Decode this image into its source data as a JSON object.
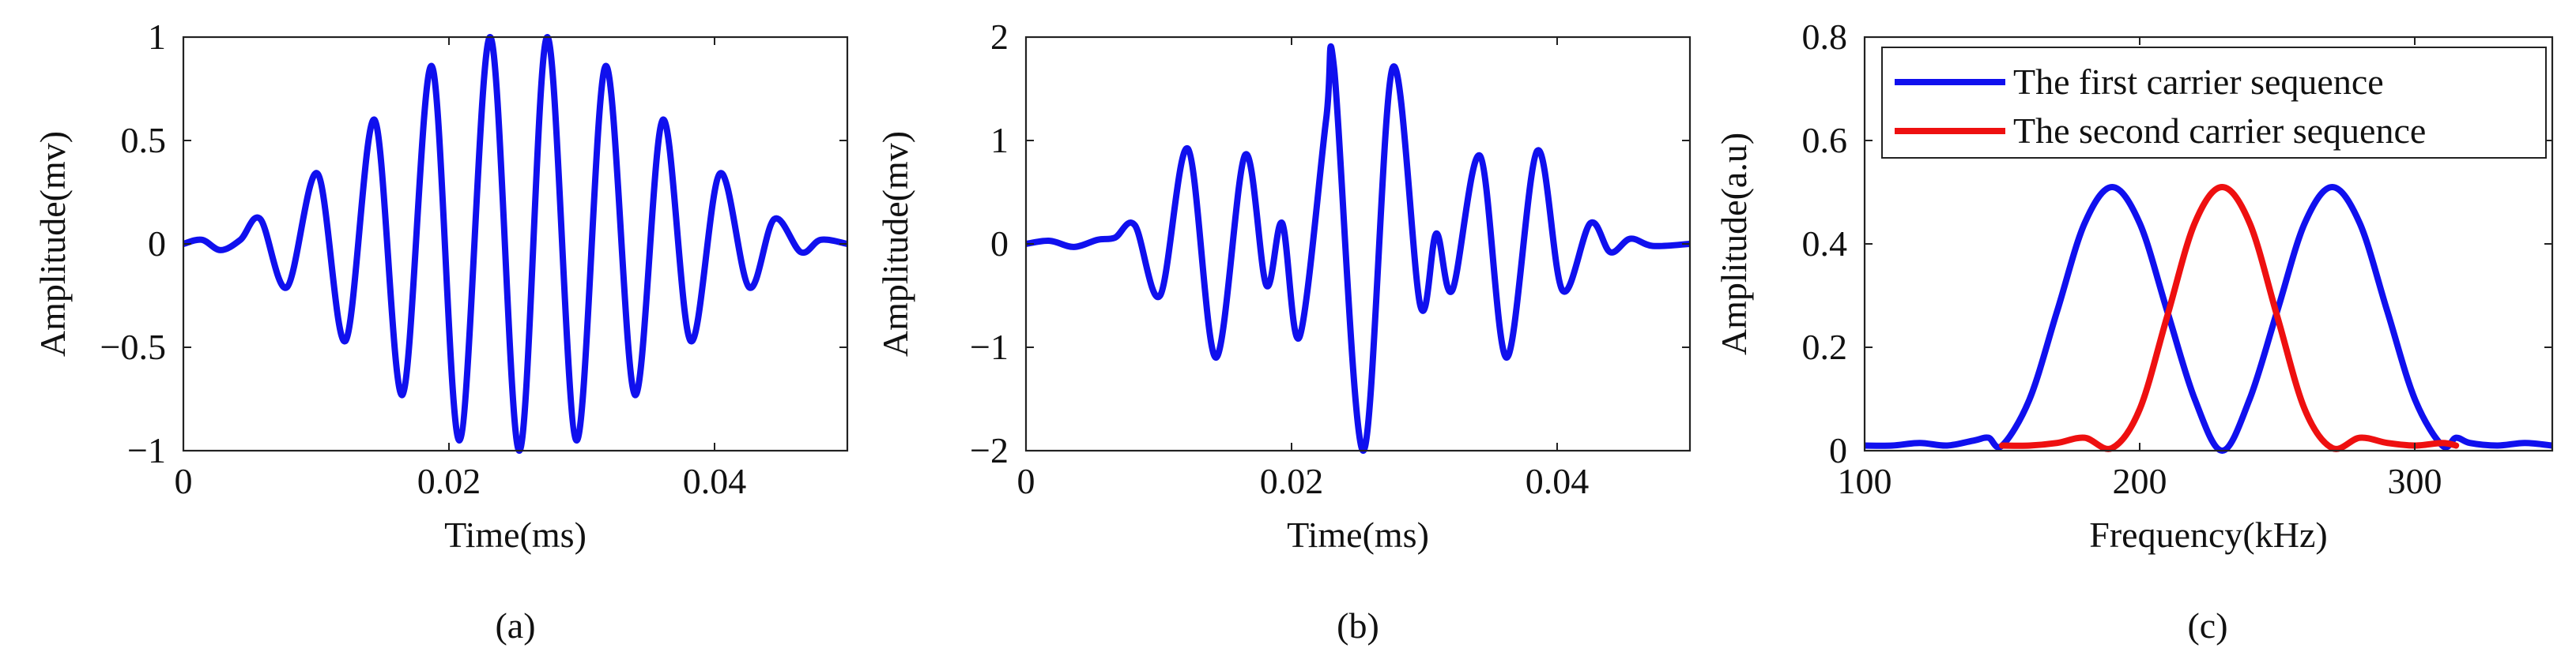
{
  "chart_data": [
    {
      "id": "a",
      "type": "line",
      "caption": "(a)",
      "xlabel": "Time(ms)",
      "ylabel": "Amplitude(mv)",
      "xlim": [
        0,
        0.05
      ],
      "ylim": [
        -1,
        1
      ],
      "xticks": [
        0,
        0.02,
        0.04
      ],
      "xtick_labels": [
        "0",
        "0.02",
        "0.04"
      ],
      "yticks": [
        -1,
        -0.5,
        0,
        0.5,
        1
      ],
      "ytick_labels": [
        "−1",
        "−0.5",
        "0",
        "0.5",
        "1"
      ],
      "series": [
        {
          "color": "#1010ee",
          "x": [
            0.0,
            0.0014,
            0.0028,
            0.0043,
            0.0058,
            0.0078,
            0.0101,
            0.0122,
            0.0144,
            0.0165,
            0.0187,
            0.0208,
            0.0231,
            0.0253,
            0.0274,
            0.0296,
            0.0318,
            0.034,
            0.0361,
            0.0382,
            0.0404,
            0.0426,
            0.0445,
            0.0465,
            0.048,
            0.05
          ],
          "y": [
            0.0,
            0.02,
            -0.03,
            0.02,
            0.12,
            -0.21,
            0.34,
            -0.47,
            0.6,
            -0.73,
            0.86,
            -0.95,
            1.0,
            -1.0,
            1.0,
            -0.95,
            0.86,
            -0.73,
            0.6,
            -0.47,
            0.34,
            -0.21,
            0.12,
            -0.04,
            0.02,
            0.0
          ]
        }
      ]
    },
    {
      "id": "b",
      "type": "line",
      "caption": "(b)",
      "xlabel": "Time(ms)",
      "ylabel": "Amplitude(mv)",
      "xlim": [
        0,
        0.05
      ],
      "ylim": [
        -2,
        2
      ],
      "xticks": [
        0,
        0.02,
        0.04
      ],
      "xtick_labels": [
        "0",
        "0.02",
        "0.04"
      ],
      "yticks": [
        -2,
        -1,
        0,
        1,
        2
      ],
      "ytick_labels": [
        "−2",
        "−1",
        "0",
        "1",
        "2"
      ],
      "series": [
        {
          "color": "#1010ee",
          "x": [
            0.0,
            0.0018,
            0.0036,
            0.0054,
            0.0067,
            0.0082,
            0.0101,
            0.0122,
            0.0143,
            0.0165,
            0.0181,
            0.0193,
            0.0206,
            0.0226,
            0.0232,
            0.0254,
            0.0276,
            0.0297,
            0.0309,
            0.0321,
            0.0342,
            0.0362,
            0.0385,
            0.0404,
            0.0425,
            0.044,
            0.0455,
            0.0472,
            0.05
          ],
          "y": [
            0.0,
            0.03,
            -0.03,
            0.04,
            0.06,
            0.18,
            -0.5,
            0.92,
            -1.1,
            0.86,
            -0.4,
            0.2,
            -0.9,
            1.2,
            1.7,
            -2.0,
            1.7,
            -0.6,
            0.1,
            -0.45,
            0.85,
            -1.1,
            0.9,
            -0.45,
            0.2,
            -0.08,
            0.05,
            -0.02,
            0.0
          ]
        }
      ]
    },
    {
      "id": "c",
      "type": "line",
      "caption": "(c)",
      "xlabel": "Frequency(kHz)",
      "ylabel": "Amplitude(a.u)",
      "xlim": [
        100,
        350
      ],
      "ylim": [
        0,
        0.8
      ],
      "xticks": [
        100,
        200,
        300
      ],
      "xtick_labels": [
        "100",
        "200",
        "300"
      ],
      "yticks": [
        0,
        0.2,
        0.4,
        0.6,
        0.8
      ],
      "ytick_labels": [
        "0",
        "0.2",
        "0.4",
        "0.6",
        "0.8"
      ],
      "legend_position": "top-right",
      "series": [
        {
          "name": "The first carrier sequence",
          "color": "#1010ee",
          "x": [
            100,
            110,
            120,
            130,
            140,
            145,
            150,
            160,
            170,
            180,
            190,
            200,
            210,
            220,
            230,
            240,
            250,
            260,
            270,
            280,
            290,
            300,
            310,
            315,
            320,
            330,
            340,
            350
          ],
          "y": [
            0.01,
            0.01,
            0.015,
            0.01,
            0.02,
            0.025,
            0.01,
            0.1,
            0.27,
            0.44,
            0.51,
            0.44,
            0.27,
            0.1,
            0.0,
            0.1,
            0.27,
            0.44,
            0.51,
            0.44,
            0.27,
            0.1,
            0.01,
            0.025,
            0.015,
            0.01,
            0.015,
            0.01
          ]
        },
        {
          "name": "The second carrier sequence",
          "color": "#ee1010",
          "x": [
            150,
            160,
            170,
            180,
            190,
            200,
            210,
            220,
            230,
            240,
            250,
            260,
            270,
            280,
            290,
            300,
            310,
            315
          ],
          "y": [
            0.01,
            0.01,
            0.015,
            0.025,
            0.005,
            0.08,
            0.26,
            0.44,
            0.51,
            0.44,
            0.26,
            0.08,
            0.005,
            0.025,
            0.015,
            0.01,
            0.015,
            0.01
          ]
        }
      ]
    }
  ]
}
